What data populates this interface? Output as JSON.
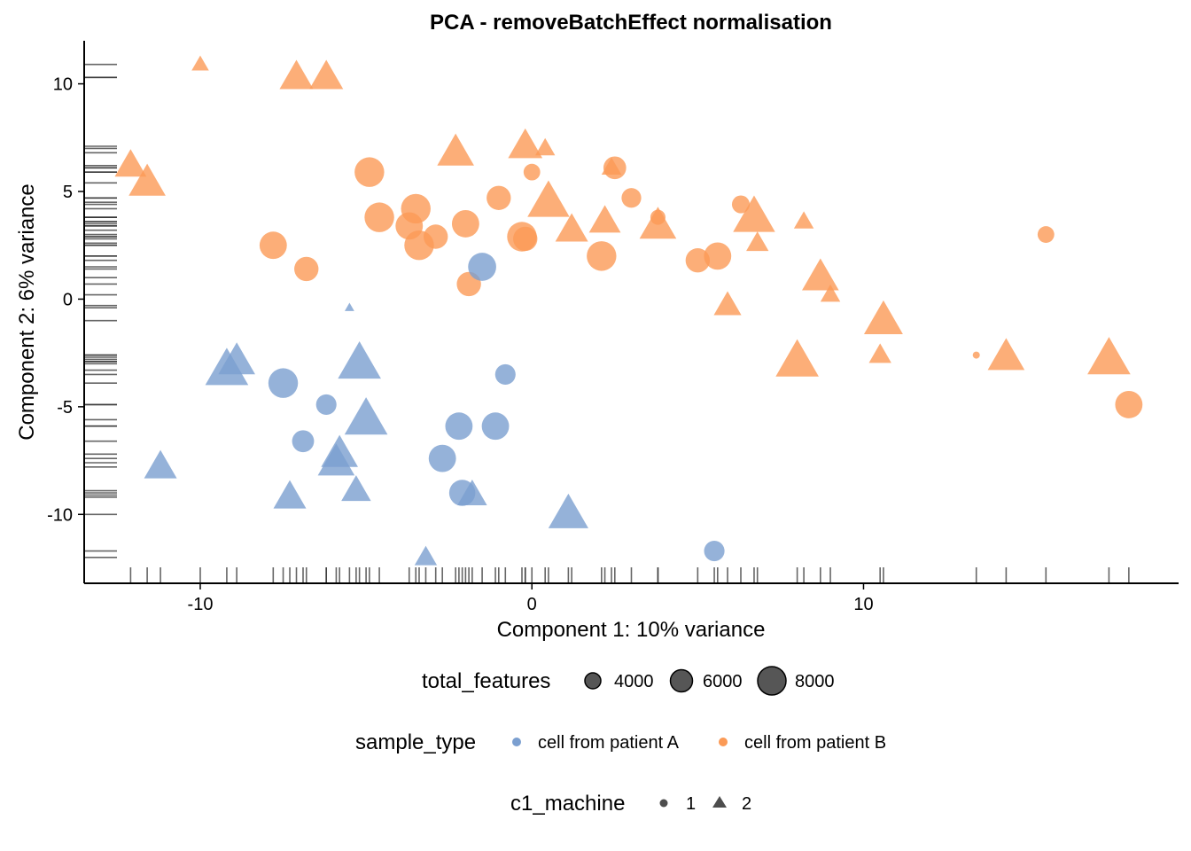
{
  "chart_data": {
    "type": "scatter",
    "title": "PCA - removeBatchEffect normalisation",
    "xlabel": "Component 1: 10% variance",
    "ylabel": "Component 2: 6% variance",
    "xlim": [
      -13.5,
      19.5
    ],
    "ylim": [
      -13.2,
      12
    ],
    "xticks": [
      -10,
      0,
      10
    ],
    "yticks": [
      -10,
      -5,
      0,
      5,
      10
    ],
    "xtick_labels": [
      "-10",
      "0",
      "10"
    ],
    "ytick_labels": [
      "-10",
      "-5",
      "0",
      "5",
      "10"
    ],
    "grid": false,
    "rug": true,
    "legend_placement": "bottom",
    "colors": {
      "cell from patient A": "#7b9fd0",
      "cell from patient B": "#fb9a56"
    },
    "legends": {
      "size": {
        "title": "total_features",
        "entries": [
          {
            "label": "4000",
            "value": 4000
          },
          {
            "label": "6000",
            "value": 6000
          },
          {
            "label": "8000",
            "value": 8000
          }
        ]
      },
      "color": {
        "title": "sample_type",
        "entries": [
          "cell from patient A",
          "cell from patient B"
        ]
      },
      "shape": {
        "title": "c1_machine",
        "entries": [
          {
            "label": "1",
            "shape": "circle"
          },
          {
            "label": "2",
            "shape": "triangle"
          }
        ]
      }
    },
    "points": [
      {
        "x": -10.0,
        "y": 10.9,
        "group": "cell from patient B",
        "machine": "2",
        "features": 3000
      },
      {
        "x": -7.1,
        "y": 10.3,
        "group": "cell from patient B",
        "machine": "2",
        "features": 6200
      },
      {
        "x": -6.2,
        "y": 10.3,
        "group": "cell from patient B",
        "machine": "2",
        "features": 6200
      },
      {
        "x": -12.1,
        "y": 6.2,
        "group": "cell from patient B",
        "machine": "2",
        "features": 5800
      },
      {
        "x": -11.6,
        "y": 5.4,
        "group": "cell from patient B",
        "machine": "2",
        "features": 6800
      },
      {
        "x": -4.9,
        "y": 5.9,
        "group": "cell from patient B",
        "machine": "1",
        "features": 7400
      },
      {
        "x": -2.3,
        "y": 6.8,
        "group": "cell from patient B",
        "machine": "2",
        "features": 6800
      },
      {
        "x": -0.2,
        "y": 7.1,
        "group": "cell from patient B",
        "machine": "2",
        "features": 6300
      },
      {
        "x": 0.4,
        "y": 7.0,
        "group": "cell from patient B",
        "machine": "2",
        "features": 3500
      },
      {
        "x": 0.0,
        "y": 5.9,
        "group": "cell from patient B",
        "machine": "1",
        "features": 4000
      },
      {
        "x": 2.5,
        "y": 6.1,
        "group": "cell from patient B",
        "machine": "1",
        "features": 5600
      },
      {
        "x": 2.4,
        "y": 6.1,
        "group": "cell from patient B",
        "machine": "2",
        "features": 3500
      },
      {
        "x": -1.0,
        "y": 4.7,
        "group": "cell from patient B",
        "machine": "1",
        "features": 6000
      },
      {
        "x": 0.5,
        "y": 4.5,
        "group": "cell from patient B",
        "machine": "2",
        "features": 7800
      },
      {
        "x": 3.0,
        "y": 4.7,
        "group": "cell from patient B",
        "machine": "1",
        "features": 4800
      },
      {
        "x": -4.6,
        "y": 3.8,
        "group": "cell from patient B",
        "machine": "1",
        "features": 7400
      },
      {
        "x": -3.5,
        "y": 4.2,
        "group": "cell from patient B",
        "machine": "1",
        "features": 7400
      },
      {
        "x": -3.7,
        "y": 3.4,
        "group": "cell from patient B",
        "machine": "1",
        "features": 6800
      },
      {
        "x": -3.4,
        "y": 2.5,
        "group": "cell from patient B",
        "machine": "1",
        "features": 7400
      },
      {
        "x": -2.9,
        "y": 2.9,
        "group": "cell from patient B",
        "machine": "1",
        "features": 6000
      },
      {
        "x": -2.0,
        "y": 3.5,
        "group": "cell from patient B",
        "machine": "1",
        "features": 6800
      },
      {
        "x": -0.3,
        "y": 2.9,
        "group": "cell from patient B",
        "machine": "1",
        "features": 7400
      },
      {
        "x": -0.2,
        "y": 2.8,
        "group": "cell from patient B",
        "machine": "1",
        "features": 6000
      },
      {
        "x": 1.2,
        "y": 3.2,
        "group": "cell from patient B",
        "machine": "2",
        "features": 6000
      },
      {
        "x": 2.2,
        "y": 3.6,
        "group": "cell from patient B",
        "machine": "2",
        "features": 5800
      },
      {
        "x": 3.8,
        "y": 3.8,
        "group": "cell from patient B",
        "machine": "1",
        "features": 3600
      },
      {
        "x": 3.8,
        "y": 3.4,
        "group": "cell from patient B",
        "machine": "2",
        "features": 6800
      },
      {
        "x": 6.3,
        "y": 4.4,
        "group": "cell from patient B",
        "machine": "1",
        "features": 4300
      },
      {
        "x": 6.7,
        "y": 3.8,
        "group": "cell from patient B",
        "machine": "2",
        "features": 7800
      },
      {
        "x": 8.2,
        "y": 3.6,
        "group": "cell from patient B",
        "machine": "2",
        "features": 3500
      },
      {
        "x": 6.8,
        "y": 2.6,
        "group": "cell from patient B",
        "machine": "2",
        "features": 4000
      },
      {
        "x": -7.8,
        "y": 2.5,
        "group": "cell from patient B",
        "machine": "1",
        "features": 6800
      },
      {
        "x": -6.8,
        "y": 1.4,
        "group": "cell from patient B",
        "machine": "1",
        "features": 6000
      },
      {
        "x": -1.9,
        "y": 0.7,
        "group": "cell from patient B",
        "machine": "1",
        "features": 6000
      },
      {
        "x": 2.1,
        "y": 2.0,
        "group": "cell from patient B",
        "machine": "1",
        "features": 7400
      },
      {
        "x": 5.0,
        "y": 1.8,
        "group": "cell from patient B",
        "machine": "1",
        "features": 6000
      },
      {
        "x": 5.6,
        "y": 2.0,
        "group": "cell from patient B",
        "machine": "1",
        "features": 6800
      },
      {
        "x": 8.7,
        "y": 1.0,
        "group": "cell from patient B",
        "machine": "2",
        "features": 6800
      },
      {
        "x": 9.0,
        "y": 0.2,
        "group": "cell from patient B",
        "machine": "2",
        "features": 3500
      },
      {
        "x": 5.9,
        "y": -0.3,
        "group": "cell from patient B",
        "machine": "2",
        "features": 5000
      },
      {
        "x": 10.6,
        "y": -1.0,
        "group": "cell from patient B",
        "machine": "2",
        "features": 7200
      },
      {
        "x": 10.5,
        "y": -2.6,
        "group": "cell from patient B",
        "machine": "2",
        "features": 4000
      },
      {
        "x": 8.0,
        "y": -2.9,
        "group": "cell from patient B",
        "machine": "2",
        "features": 8000
      },
      {
        "x": 13.4,
        "y": -2.6,
        "group": "cell from patient B",
        "machine": "1",
        "features": 1500
      },
      {
        "x": 14.3,
        "y": -2.7,
        "group": "cell from patient B",
        "machine": "2",
        "features": 6800
      },
      {
        "x": 15.5,
        "y": 3.0,
        "group": "cell from patient B",
        "machine": "1",
        "features": 4000
      },
      {
        "x": 17.4,
        "y": -2.8,
        "group": "cell from patient B",
        "machine": "2",
        "features": 8000
      },
      {
        "x": 18.0,
        "y": -4.9,
        "group": "cell from patient B",
        "machine": "1",
        "features": 6800
      },
      {
        "x": -1.5,
        "y": 1.5,
        "group": "cell from patient A",
        "machine": "1",
        "features": 7000
      },
      {
        "x": -5.5,
        "y": -0.4,
        "group": "cell from patient A",
        "machine": "2",
        "features": 1500
      },
      {
        "x": -9.2,
        "y": -3.3,
        "group": "cell from patient A",
        "machine": "2",
        "features": 8000
      },
      {
        "x": -8.9,
        "y": -2.9,
        "group": "cell from patient A",
        "machine": "2",
        "features": 6800
      },
      {
        "x": -5.2,
        "y": -3.0,
        "group": "cell from patient A",
        "machine": "2",
        "features": 8000
      },
      {
        "x": -7.5,
        "y": -3.9,
        "group": "cell from patient A",
        "machine": "1",
        "features": 7400
      },
      {
        "x": -6.2,
        "y": -4.9,
        "group": "cell from patient A",
        "machine": "1",
        "features": 5000
      },
      {
        "x": -0.8,
        "y": -3.5,
        "group": "cell from patient A",
        "machine": "1",
        "features": 5000
      },
      {
        "x": -5.0,
        "y": -5.6,
        "group": "cell from patient A",
        "machine": "2",
        "features": 8000
      },
      {
        "x": -2.2,
        "y": -5.9,
        "group": "cell from patient A",
        "machine": "1",
        "features": 6800
      },
      {
        "x": -1.1,
        "y": -5.9,
        "group": "cell from patient A",
        "machine": "1",
        "features": 6800
      },
      {
        "x": -6.9,
        "y": -6.6,
        "group": "cell from patient A",
        "machine": "1",
        "features": 5400
      },
      {
        "x": -5.8,
        "y": -7.2,
        "group": "cell from patient A",
        "machine": "2",
        "features": 6800
      },
      {
        "x": -5.9,
        "y": -7.6,
        "group": "cell from patient A",
        "machine": "2",
        "features": 6800
      },
      {
        "x": -2.7,
        "y": -7.4,
        "group": "cell from patient A",
        "machine": "1",
        "features": 6800
      },
      {
        "x": -11.2,
        "y": -7.8,
        "group": "cell from patient A",
        "machine": "2",
        "features": 6000
      },
      {
        "x": -7.3,
        "y": -9.2,
        "group": "cell from patient A",
        "machine": "2",
        "features": 6000
      },
      {
        "x": -5.3,
        "y": -8.9,
        "group": "cell from patient A",
        "machine": "2",
        "features": 5400
      },
      {
        "x": -2.1,
        "y": -9.0,
        "group": "cell from patient A",
        "machine": "1",
        "features": 6500
      },
      {
        "x": -1.8,
        "y": -9.1,
        "group": "cell from patient A",
        "machine": "2",
        "features": 5400
      },
      {
        "x": 1.1,
        "y": -10.0,
        "group": "cell from patient A",
        "machine": "2",
        "features": 7400
      },
      {
        "x": -3.2,
        "y": -12.0,
        "group": "cell from patient A",
        "machine": "2",
        "features": 4000
      },
      {
        "x": 5.5,
        "y": -11.7,
        "group": "cell from patient A",
        "machine": "1",
        "features": 5000
      }
    ]
  }
}
